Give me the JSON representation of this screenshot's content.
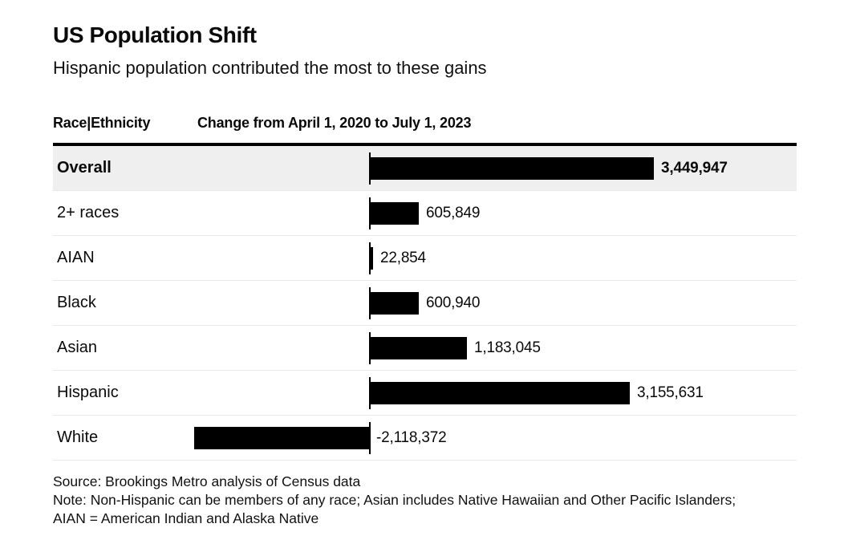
{
  "header": {
    "title": "US Population Shift",
    "subtitle": "Hispanic population contributed the most to these gains"
  },
  "table": {
    "col_header_left": "Race|Ethnicity",
    "col_header_right": "Change from April 1, 2020 to July 1, 2023",
    "rows": [
      {
        "label": "Overall",
        "value": 3449947,
        "value_label": "3,449,947",
        "highlight": true
      },
      {
        "label": "2+ races",
        "value": 605849,
        "value_label": "605,849",
        "highlight": false
      },
      {
        "label": "AIAN",
        "value": 22854,
        "value_label": "22,854",
        "highlight": false
      },
      {
        "label": "Black",
        "value": 600940,
        "value_label": "600,940",
        "highlight": false
      },
      {
        "label": "Asian",
        "value": 1183045,
        "value_label": "1,183,045",
        "highlight": false
      },
      {
        "label": "Hispanic",
        "value": 3155631,
        "value_label": "3,155,631",
        "highlight": false
      },
      {
        "label": "White",
        "value": -2118372,
        "value_label": "-2,118,372",
        "highlight": false
      }
    ]
  },
  "footer": {
    "source": "Source: Brookings Metro analysis of Census data",
    "note": "Note: Non-Hispanic can be members of any race; Asian includes Native Hawaiian and Other Pacific Islanders; AIAN = American Indian and Alaska Native"
  },
  "colors": {
    "bar": "#000000",
    "highlight_row_bg": "#efefef",
    "separator": "#e9e9e9",
    "background": "#ffffff"
  },
  "chart_data": {
    "type": "bar",
    "orientation": "horizontal",
    "title": "US Population Shift",
    "subtitle": "Hispanic population contributed the most to these gains",
    "categories": [
      "Overall",
      "2+ races",
      "AIAN",
      "Black",
      "Asian",
      "Hispanic",
      "White"
    ],
    "values": [
      3449947,
      605849,
      22854,
      600940,
      1183045,
      3155631,
      -2118372
    ],
    "data_labels": [
      "3,449,947",
      "605,849",
      "22,854",
      "600,940",
      "1,183,045",
      "3,155,631",
      "-2,118,372"
    ],
    "xlabel": "Change from April 1, 2020 to July 1, 2023",
    "ylabel": "Race|Ethnicity",
    "xlim": [
      -2200000,
      3500000
    ],
    "grid": false,
    "legend": false,
    "highlighted_category": "Overall",
    "source": "Source: Brookings Metro analysis of Census data",
    "note": "Note: Non-Hispanic can be members of any race; Asian includes Native Hawaiian and Other Pacific Islanders; AIAN = American Indian and Alaska Native"
  }
}
